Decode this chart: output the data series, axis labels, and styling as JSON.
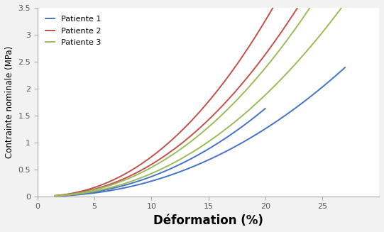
{
  "title": "",
  "xlabel": "Déformation (%)",
  "ylabel": "Contrainte nominale (MPa)",
  "xlim": [
    0,
    30
  ],
  "ylim": [
    0,
    3.5
  ],
  "xticks": [
    0,
    5,
    10,
    15,
    20,
    25
  ],
  "yticks": [
    0,
    0.5,
    1.0,
    1.5,
    2.0,
    2.5,
    3.0,
    3.5
  ],
  "legend": [
    "Patiente 1",
    "Patiente 2",
    "Patiente 3"
  ],
  "color_p1": "#4472C4",
  "color_p2": "#C0504D",
  "color_p3": "#9BBB59",
  "curves": {
    "p1_curve1": {
      "xstart": 1.5,
      "xend": 20.0,
      "a": 0.0026,
      "b": 2.15
    },
    "p1_curve2": {
      "xstart": 1.5,
      "xend": 27.0,
      "a": 0.002,
      "b": 2.15
    },
    "p2_curve1": {
      "xstart": 1.5,
      "xend": 25.0,
      "a": 0.0052,
      "b": 2.15
    },
    "p2_curve2": {
      "xstart": 1.5,
      "xend": 25.0,
      "a": 0.0042,
      "b": 2.15
    },
    "p3_curve1": {
      "xstart": 1.5,
      "xend": 28.5,
      "a": 0.0038,
      "b": 2.15
    },
    "p3_curve2": {
      "xstart": 1.5,
      "xend": 28.5,
      "a": 0.003,
      "b": 2.15
    }
  },
  "figsize": [
    5.41,
    3.27
  ],
  "dpi": 100,
  "xlabel_fontsize": 12,
  "ylabel_fontsize": 8.5,
  "legend_fontsize": 8,
  "tick_fontsize": 8,
  "linewidth": 1.4,
  "bg_color": "#f2f2f2",
  "plot_bg_color": "#ffffff"
}
